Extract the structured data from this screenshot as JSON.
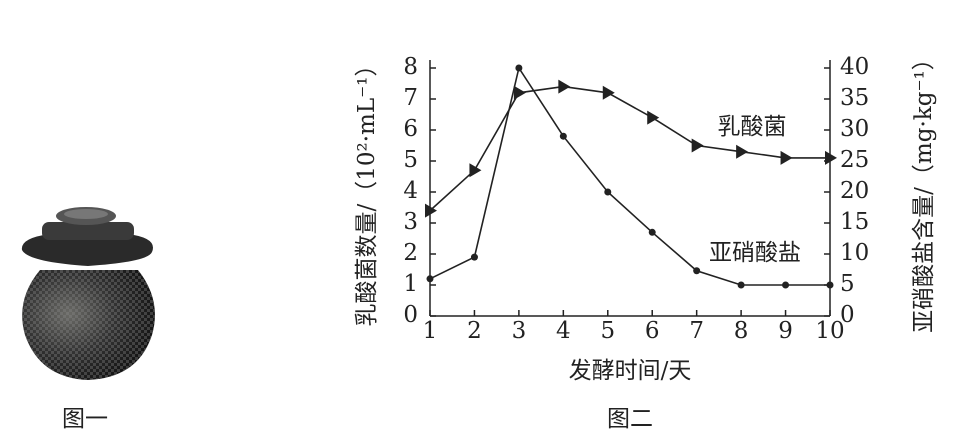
{
  "chart_data": {
    "type": "line",
    "x_label": "发酵时间/天",
    "y_label": "乳酸菌数量/（10²·mL⁻¹）",
    "y2_label": "亚硝酸盐含量/（mg·kg⁻¹）",
    "x": [
      1,
      2,
      3,
      4,
      5,
      6,
      7,
      8,
      9,
      10
    ],
    "xlim": [
      1,
      10
    ],
    "xticks": [
      1,
      2,
      3,
      4,
      5,
      6,
      7,
      8,
      9,
      10
    ],
    "ylim": [
      0,
      8
    ],
    "yticks": [
      0,
      1,
      2,
      3,
      4,
      5,
      6,
      7,
      8
    ],
    "y2lim": [
      0,
      40
    ],
    "y2ticks": [
      0,
      5,
      10,
      15,
      20,
      25,
      30,
      35,
      40
    ],
    "series": [
      {
        "name": "乳酸菌",
        "color": "#222222",
        "marker": "triangle",
        "values": [
          3.4,
          4.7,
          7.2,
          7.4,
          7.2,
          6.4,
          5.5,
          5.3,
          5.1,
          5.1
        ]
      },
      {
        "name": "亚硝酸盐",
        "color": "#222222",
        "marker": "circle",
        "axis": "y2",
        "values": [
          6,
          9.5,
          40,
          29,
          20,
          13.5,
          7.3,
          5,
          5,
          5
        ]
      }
    ]
  },
  "captions": [
    "图一",
    "图二"
  ]
}
